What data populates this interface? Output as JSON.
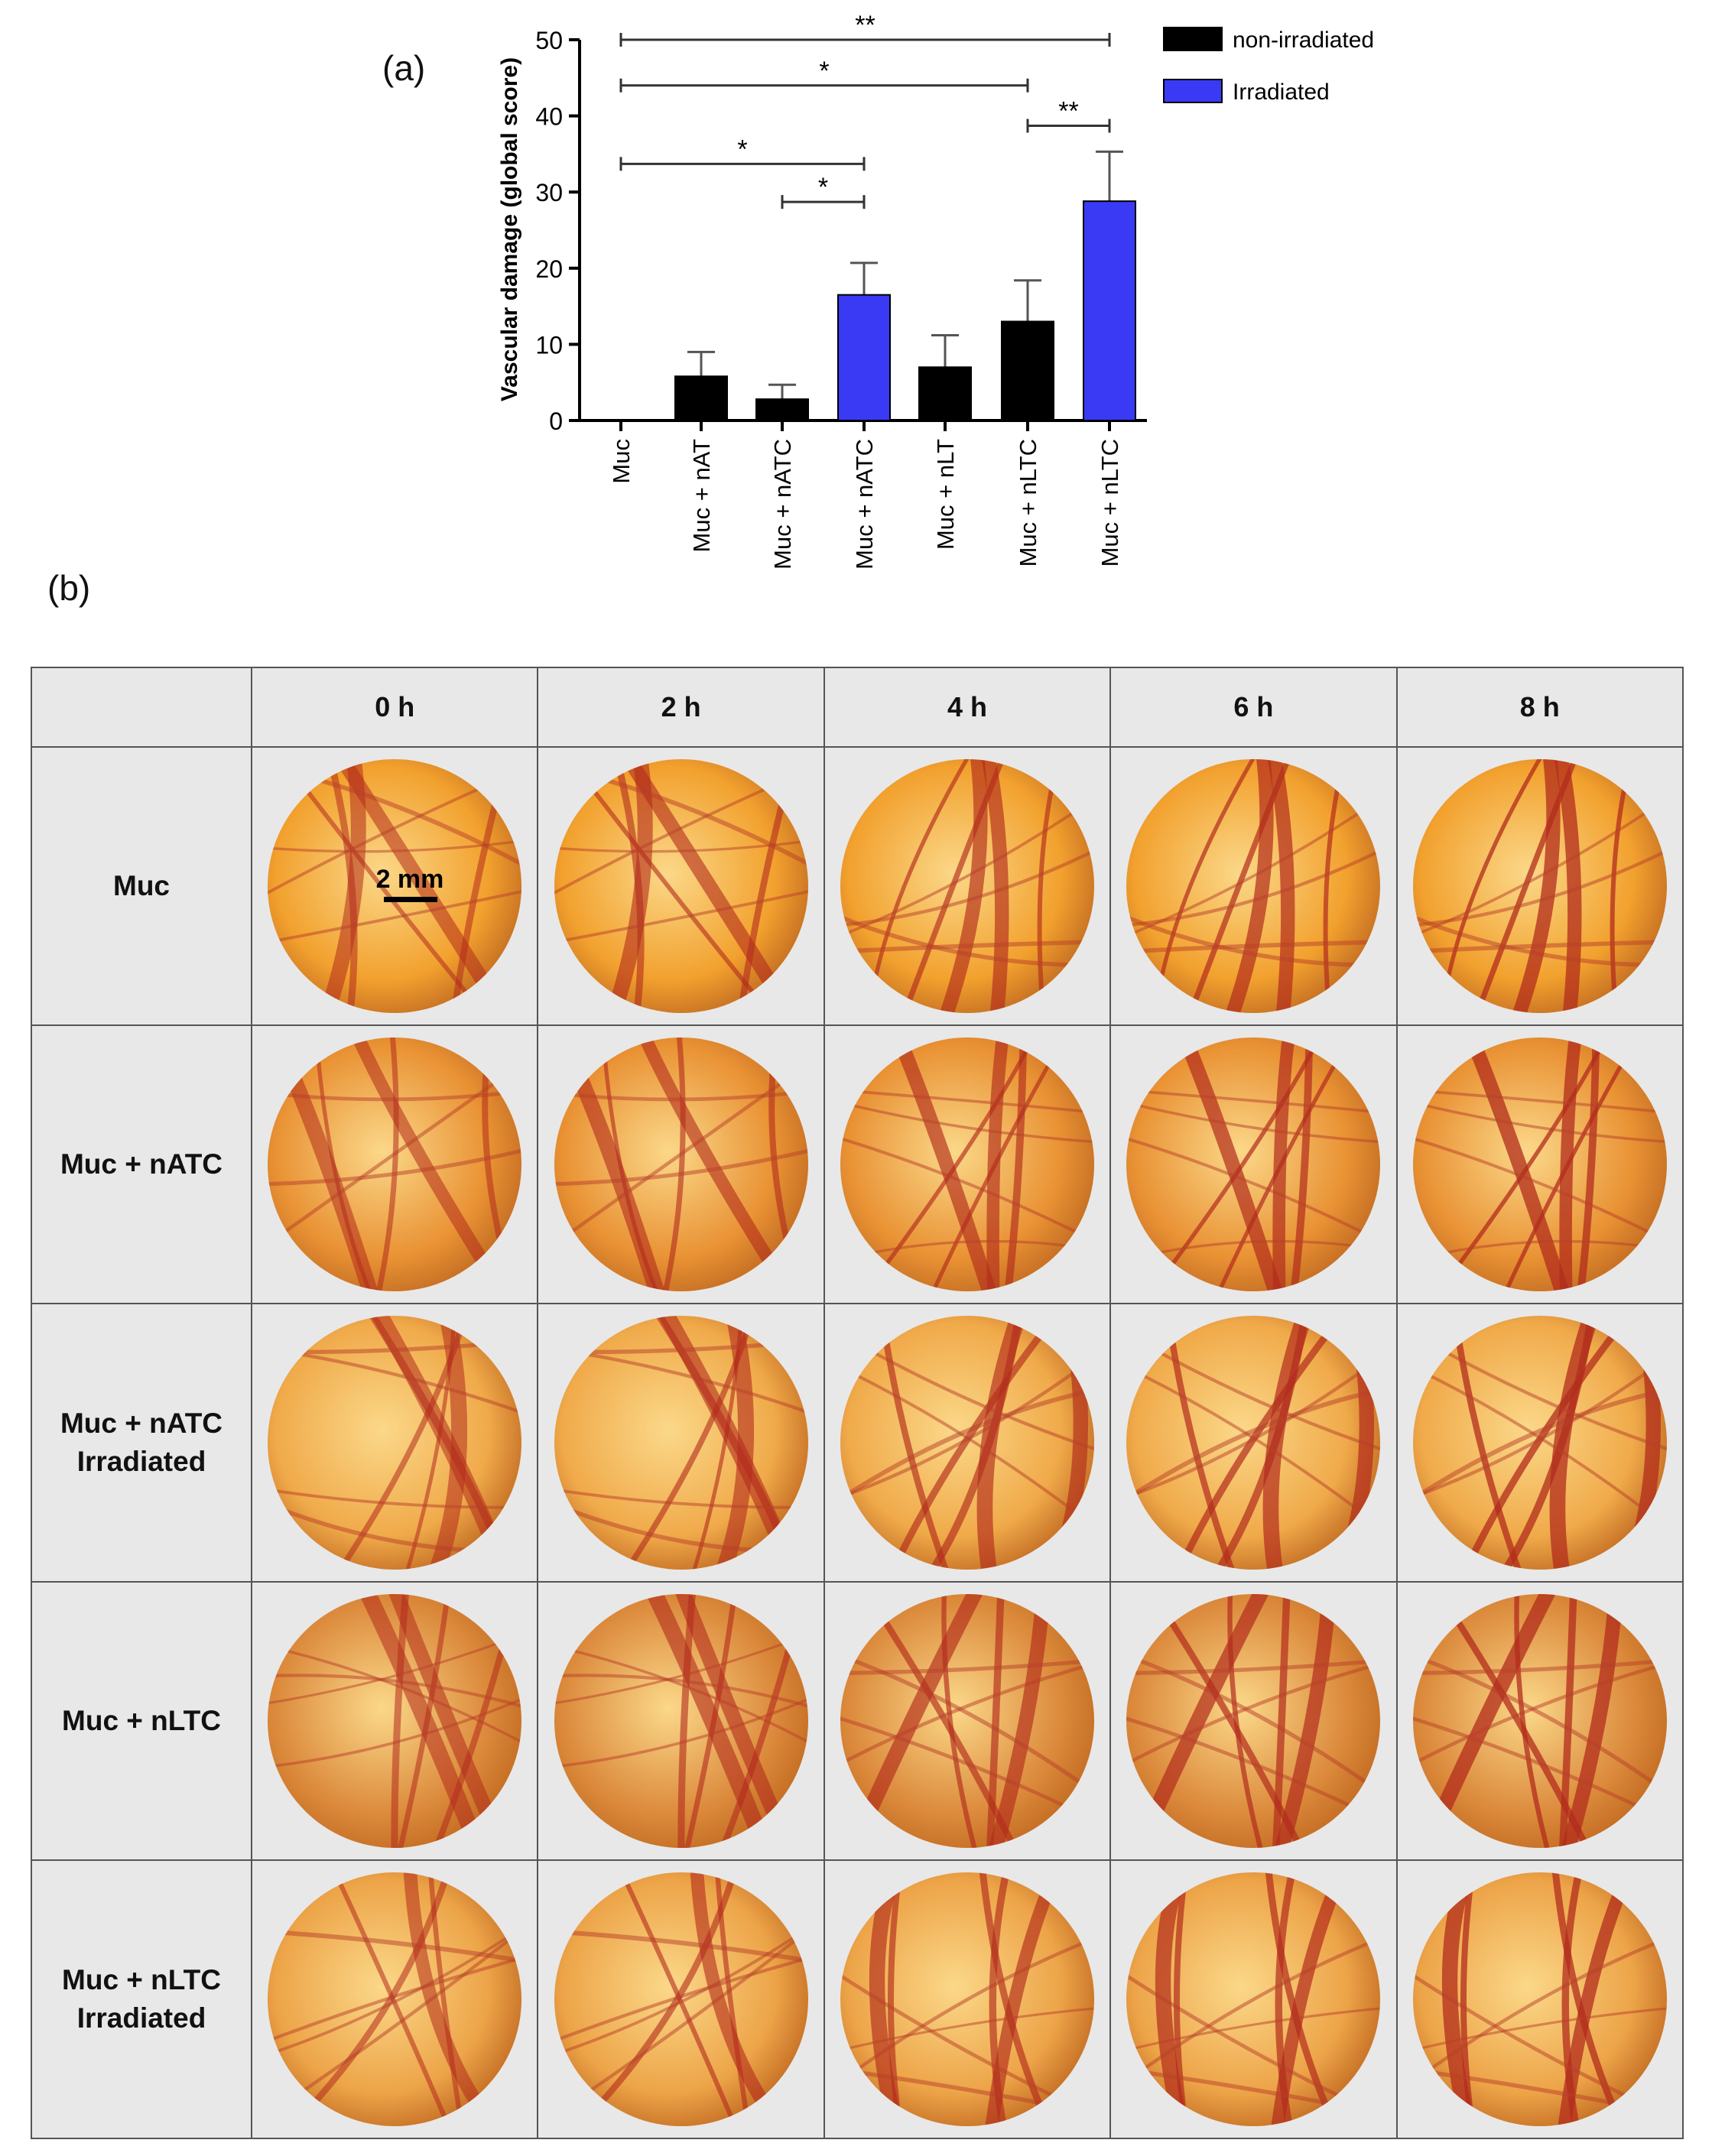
{
  "panel_a_label": "(a)",
  "panel_b_label": "(b)",
  "chart_data": {
    "type": "bar",
    "ylabel": "Vascular damage (global score)",
    "xlabel": "",
    "ylim": [
      0,
      50
    ],
    "yticks": [
      0,
      10,
      20,
      30,
      40,
      50
    ],
    "categories": [
      "Muc",
      "Muc + nAT",
      "Muc + nATC",
      "Muc + nATC",
      "Muc + nLT",
      "Muc + nLTC",
      "Muc + nLTC"
    ],
    "values": [
      0,
      5.8,
      2.8,
      16.5,
      7,
      13,
      28.8
    ],
    "errors": [
      0,
      3.2,
      1.9,
      4.2,
      4.2,
      5.4,
      6.5
    ],
    "groups": [
      "non-irradiated",
      "non-irradiated",
      "non-irradiated",
      "Irradiated",
      "non-irradiated",
      "non-irradiated",
      "Irradiated"
    ],
    "legend": [
      {
        "name": "non-irradiated",
        "color": "#000000"
      },
      {
        "name": "Irradiated",
        "color": "#3a3af5"
      }
    ],
    "legend_position": "top-right",
    "significance": [
      {
        "from": 0,
        "to": 6,
        "y": 50,
        "label": "**"
      },
      {
        "from": 0,
        "to": 5,
        "y": 44,
        "label": "*"
      },
      {
        "from": 5,
        "to": 6,
        "y": 38.7,
        "label": "**"
      },
      {
        "from": 0,
        "to": 3,
        "y": 33.7,
        "label": "*"
      },
      {
        "from": 2,
        "to": 3,
        "y": 28.7,
        "label": "*"
      }
    ]
  },
  "table": {
    "time_headers": [
      "0 h",
      "2 h",
      "4 h",
      "6 h",
      "8 h"
    ],
    "rows": [
      {
        "label_lines": [
          "Muc"
        ],
        "tone": "#f2a12e"
      },
      {
        "label_lines": [
          "Muc + nATC"
        ],
        "tone": "#e99234"
      },
      {
        "label_lines": [
          "Muc + nATC",
          "Irradiated"
        ],
        "tone": "#f0aa4a"
      },
      {
        "label_lines": [
          "Muc + nLTC"
        ],
        "tone": "#dc8a3c"
      },
      {
        "label_lines": [
          "Muc + nLTC",
          "Irradiated"
        ],
        "tone": "#eda448"
      }
    ],
    "scale_bar_label": "2 mm"
  }
}
